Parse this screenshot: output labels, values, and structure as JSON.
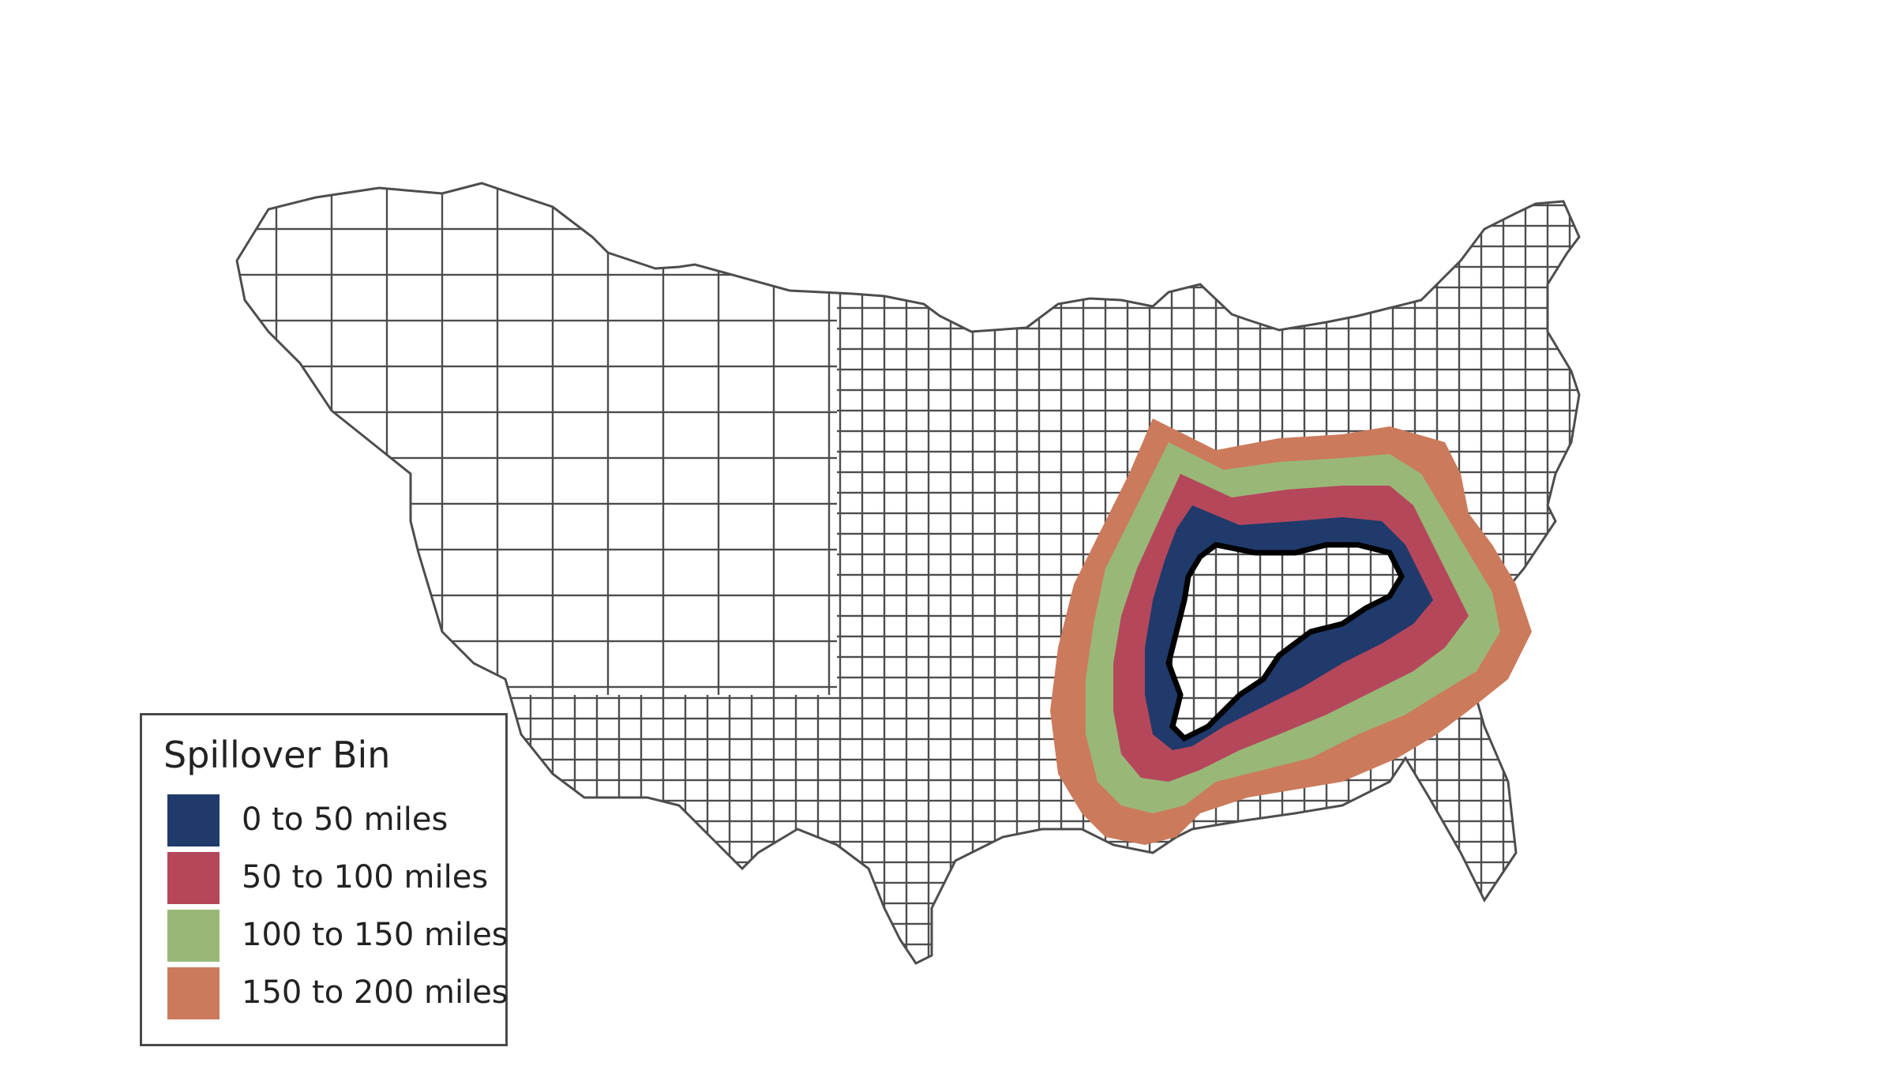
{
  "legend": {
    "title": "Spillover Bin",
    "items": [
      {
        "label": "0 to 50 miles",
        "color": "#1f3a6b"
      },
      {
        "label": "50 to 100 miles",
        "color": "#b5475b"
      },
      {
        "label": "100 to 150 miles",
        "color": "#99b878"
      },
      {
        "label": "150 to 200 miles",
        "color": "#cc7a5c"
      }
    ]
  },
  "map": {
    "region": "contiguous United States county boundaries",
    "county_stroke": "#4d4d4d",
    "county_fill": "#ffffff",
    "core_outline_color": "#000000"
  }
}
